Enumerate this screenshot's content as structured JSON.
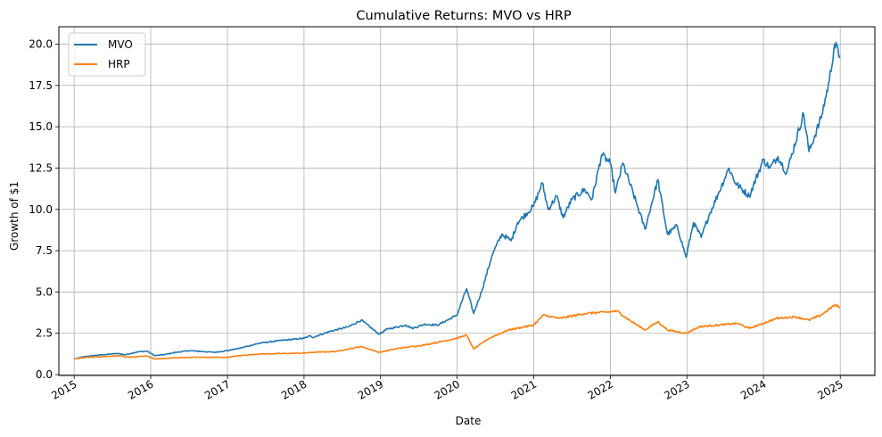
{
  "chart_data": {
    "type": "line",
    "title": "Cumulative Returns: MVO vs HRP",
    "xlabel": "Date",
    "ylabel": "Growth of $1",
    "xlim": [
      "2014-10-20",
      "2025-06-15"
    ],
    "ylim": [
      -0.05,
      21.05
    ],
    "x_ticks": [
      "2015",
      "2016",
      "2017",
      "2018",
      "2019",
      "2020",
      "2021",
      "2022",
      "2023",
      "2024",
      "2025"
    ],
    "y_ticks": [
      "0.0",
      "2.5",
      "5.0",
      "7.5",
      "10.0",
      "12.5",
      "15.0",
      "17.5",
      "20.0"
    ],
    "grid": true,
    "legend": "upper-left",
    "series": [
      {
        "name": "MVO",
        "color": "#1f77b4",
        "points": [
          [
            "2015-01-02",
            0.95
          ],
          [
            "2015-02-15",
            1.08
          ],
          [
            "2015-04-01",
            1.15
          ],
          [
            "2015-06-01",
            1.22
          ],
          [
            "2015-08-01",
            1.28
          ],
          [
            "2015-09-01",
            1.2
          ],
          [
            "2015-11-01",
            1.38
          ],
          [
            "2015-12-15",
            1.42
          ],
          [
            "2016-01-20",
            1.15
          ],
          [
            "2016-03-01",
            1.2
          ],
          [
            "2016-05-01",
            1.35
          ],
          [
            "2016-07-01",
            1.45
          ],
          [
            "2016-09-01",
            1.4
          ],
          [
            "2016-11-01",
            1.35
          ],
          [
            "2016-12-31",
            1.45
          ],
          [
            "2017-03-01",
            1.6
          ],
          [
            "2017-06-01",
            1.9
          ],
          [
            "2017-09-01",
            2.05
          ],
          [
            "2017-12-31",
            2.2
          ],
          [
            "2018-02-01",
            2.35
          ],
          [
            "2018-02-10",
            2.25
          ],
          [
            "2018-05-01",
            2.6
          ],
          [
            "2018-08-01",
            2.9
          ],
          [
            "2018-10-01",
            3.3
          ],
          [
            "2018-12-25",
            2.45
          ],
          [
            "2019-02-01",
            2.75
          ],
          [
            "2019-05-01",
            3.0
          ],
          [
            "2019-06-01",
            2.8
          ],
          [
            "2019-08-01",
            3.05
          ],
          [
            "2019-10-01",
            3.0
          ],
          [
            "2019-12-31",
            3.6
          ],
          [
            "2020-02-15",
            5.2
          ],
          [
            "2020-03-20",
            3.7
          ],
          [
            "2020-05-01",
            5.2
          ],
          [
            "2020-06-15",
            7.2
          ],
          [
            "2020-08-01",
            8.5
          ],
          [
            "2020-09-15",
            8.1
          ],
          [
            "2020-10-15",
            9.2
          ],
          [
            "2020-12-31",
            10.2
          ],
          [
            "2021-02-10",
            11.6
          ],
          [
            "2021-03-10",
            10.0
          ],
          [
            "2021-04-20",
            10.8
          ],
          [
            "2021-05-20",
            9.5
          ],
          [
            "2021-07-01",
            10.6
          ],
          [
            "2021-09-01",
            11.2
          ],
          [
            "2021-10-05",
            10.6
          ],
          [
            "2021-11-20",
            13.3
          ],
          [
            "2021-12-31",
            12.8
          ],
          [
            "2022-01-25",
            11.0
          ],
          [
            "2022-03-01",
            12.8
          ],
          [
            "2022-05-10",
            10.2
          ],
          [
            "2022-06-15",
            8.8
          ],
          [
            "2022-08-15",
            11.8
          ],
          [
            "2022-09-30",
            8.5
          ],
          [
            "2022-11-15",
            9.0
          ],
          [
            "2022-12-28",
            7.1
          ],
          [
            "2023-02-01",
            9.2
          ],
          [
            "2023-03-10",
            8.3
          ],
          [
            "2023-04-15",
            9.6
          ],
          [
            "2023-06-01",
            11.0
          ],
          [
            "2023-07-20",
            12.5
          ],
          [
            "2023-08-20",
            11.6
          ],
          [
            "2023-10-25",
            10.8
          ],
          [
            "2023-12-31",
            13.0
          ],
          [
            "2024-02-01",
            12.5
          ],
          [
            "2024-03-10",
            13.2
          ],
          [
            "2024-04-20",
            12.2
          ],
          [
            "2024-07-10",
            15.8
          ],
          [
            "2024-08-05",
            13.5
          ],
          [
            "2024-10-01",
            15.5
          ],
          [
            "2024-11-10",
            17.8
          ],
          [
            "2024-12-05",
            20.0
          ],
          [
            "2024-12-31",
            19.3
          ]
        ]
      },
      {
        "name": "HRP",
        "color": "#ff7f0e",
        "points": [
          [
            "2015-01-02",
            0.95
          ],
          [
            "2015-03-01",
            1.05
          ],
          [
            "2015-06-01",
            1.1
          ],
          [
            "2015-08-15",
            1.15
          ],
          [
            "2015-09-01",
            1.05
          ],
          [
            "2015-12-15",
            1.12
          ],
          [
            "2016-01-20",
            0.95
          ],
          [
            "2016-04-01",
            1.0
          ],
          [
            "2016-07-01",
            1.05
          ],
          [
            "2016-12-31",
            1.05
          ],
          [
            "2017-03-01",
            1.15
          ],
          [
            "2017-06-01",
            1.25
          ],
          [
            "2017-12-31",
            1.3
          ],
          [
            "2018-02-10",
            1.35
          ],
          [
            "2018-06-01",
            1.4
          ],
          [
            "2018-10-01",
            1.7
          ],
          [
            "2018-12-25",
            1.35
          ],
          [
            "2019-04-01",
            1.6
          ],
          [
            "2019-08-01",
            1.8
          ],
          [
            "2019-12-31",
            2.2
          ],
          [
            "2020-02-15",
            2.4
          ],
          [
            "2020-03-20",
            1.55
          ],
          [
            "2020-06-01",
            2.2
          ],
          [
            "2020-09-01",
            2.7
          ],
          [
            "2020-12-31",
            3.0
          ],
          [
            "2021-02-15",
            3.6
          ],
          [
            "2021-05-01",
            3.4
          ],
          [
            "2021-09-01",
            3.7
          ],
          [
            "2021-12-31",
            3.8
          ],
          [
            "2022-02-01",
            3.85
          ],
          [
            "2022-04-01",
            3.3
          ],
          [
            "2022-06-15",
            2.7
          ],
          [
            "2022-08-15",
            3.2
          ],
          [
            "2022-10-01",
            2.7
          ],
          [
            "2022-12-28",
            2.5
          ],
          [
            "2023-03-01",
            2.9
          ],
          [
            "2023-06-01",
            3.0
          ],
          [
            "2023-09-01",
            3.1
          ],
          [
            "2023-10-25",
            2.8
          ],
          [
            "2023-12-31",
            3.1
          ],
          [
            "2024-03-01",
            3.4
          ],
          [
            "2024-06-01",
            3.5
          ],
          [
            "2024-08-05",
            3.3
          ],
          [
            "2024-10-01",
            3.6
          ],
          [
            "2024-12-05",
            4.2
          ],
          [
            "2024-12-31",
            4.1
          ]
        ]
      }
    ]
  }
}
